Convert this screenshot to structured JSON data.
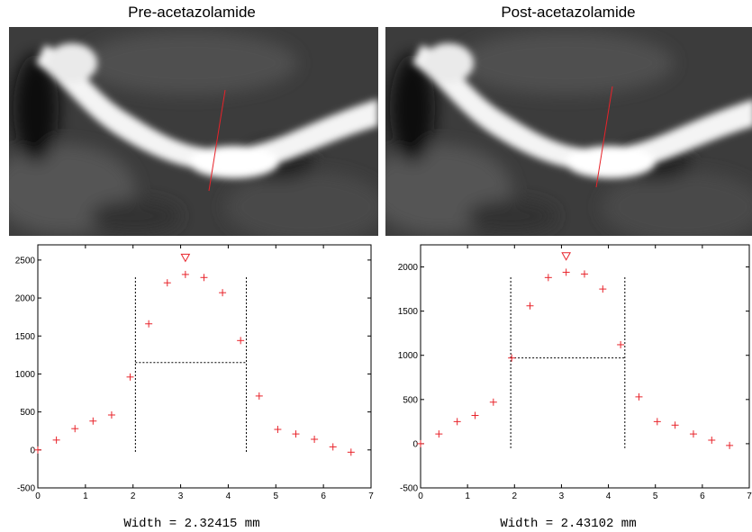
{
  "panels": [
    {
      "title": "Pre-acetazolamide",
      "caption": "Width = 2.32415 mm"
    },
    {
      "title": "Post-acetazolamide",
      "caption": "Width = 2.43102 mm"
    }
  ],
  "colors": {
    "marker": "#e8232a",
    "dotted": "#000000",
    "axis": "#000000"
  },
  "chart_data": [
    {
      "type": "scatter",
      "title": "",
      "xlabel": "",
      "ylabel": "",
      "xlim": [
        0,
        7
      ],
      "ylim": [
        -500,
        2700
      ],
      "xticks": [
        0,
        1,
        2,
        3,
        4,
        5,
        6,
        7
      ],
      "yticks": [
        -500,
        0,
        500,
        1000,
        1500,
        2000,
        2500
      ],
      "x": [
        0,
        0.39,
        0.78,
        1.16,
        1.55,
        1.94,
        2.33,
        2.72,
        3.1,
        3.49,
        3.88,
        4.26,
        4.65,
        5.04,
        5.42,
        5.81,
        6.2,
        6.58
      ],
      "y": [
        0,
        130,
        280,
        380,
        460,
        960,
        1660,
        2200,
        2310,
        2270,
        2070,
        1440,
        710,
        270,
        210,
        140,
        40,
        -30
      ],
      "peak_marker": {
        "x": 3.1,
        "y": 2530
      },
      "half_max_level": 1150,
      "edges": [
        2.05,
        4.38
      ]
    },
    {
      "type": "scatter",
      "title": "",
      "xlabel": "",
      "ylabel": "",
      "xlim": [
        0,
        7
      ],
      "ylim": [
        -500,
        2250
      ],
      "xticks": [
        0,
        1,
        2,
        3,
        4,
        5,
        6,
        7
      ],
      "yticks": [
        -500,
        0,
        500,
        1000,
        1500,
        2000
      ],
      "x": [
        0,
        0.39,
        0.78,
        1.16,
        1.55,
        1.94,
        2.33,
        2.72,
        3.1,
        3.49,
        3.88,
        4.26,
        4.65,
        5.04,
        5.42,
        5.81,
        6.2,
        6.58
      ],
      "y": [
        0,
        110,
        250,
        320,
        470,
        970,
        1560,
        1880,
        1940,
        1920,
        1750,
        1120,
        530,
        250,
        210,
        110,
        40,
        -20
      ],
      "peak_marker": {
        "x": 3.1,
        "y": 2120
      },
      "half_max_level": 970,
      "edges": [
        1.92,
        4.35
      ]
    }
  ]
}
